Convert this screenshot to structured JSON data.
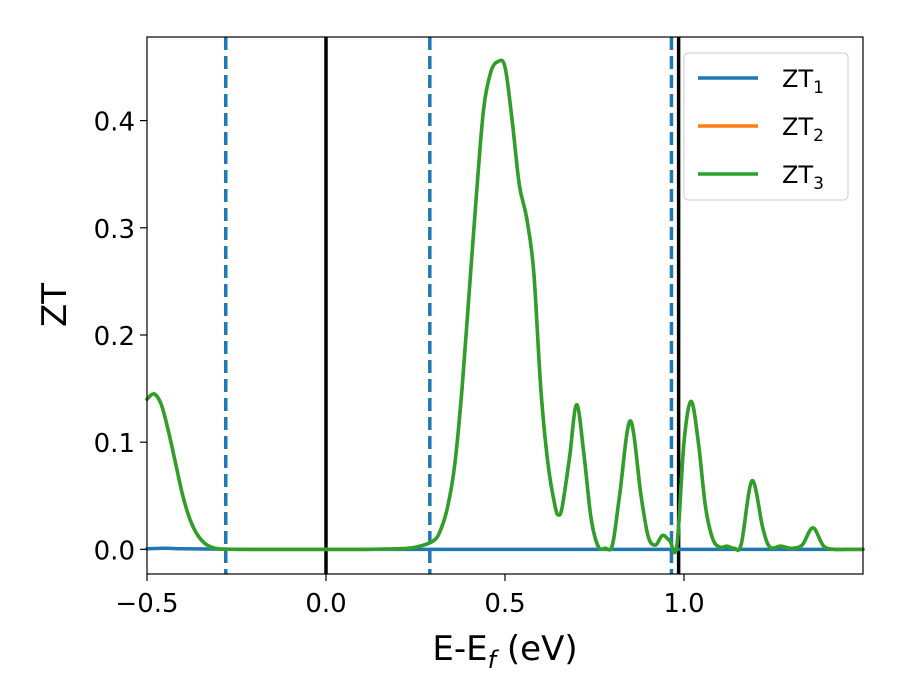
{
  "chart_data": {
    "type": "line",
    "title": "",
    "xlabel": {
      "main": "E-E",
      "sub": "f",
      "unit": " (eV)"
    },
    "ylabel": "ZT",
    "xlim": [
      -0.5,
      1.5
    ],
    "ylim": [
      -0.023,
      0.478
    ],
    "xticks": [
      {
        "value": -0.5,
        "label": "−0.5"
      },
      {
        "value": 0.0,
        "label": "0.0"
      },
      {
        "value": 0.5,
        "label": "0.5"
      },
      {
        "value": 1.0,
        "label": "1.0"
      }
    ],
    "yticks": [
      {
        "value": 0.0,
        "label": "0.0"
      },
      {
        "value": 0.1,
        "label": "0.1"
      },
      {
        "value": 0.2,
        "label": "0.2"
      },
      {
        "value": 0.3,
        "label": "0.3"
      },
      {
        "value": 0.4,
        "label": "0.4"
      }
    ],
    "grid": false,
    "legend_position": "top-right",
    "series": [
      {
        "name": "ZT",
        "sub": "1",
        "color": "#1f77b4",
        "x": [
          -0.5,
          -0.45,
          -0.4,
          -0.3,
          -0.2,
          -0.1,
          0.0,
          0.2,
          0.4,
          0.6,
          0.8,
          1.0,
          1.2,
          1.4,
          1.5
        ],
        "y": [
          0.0005,
          0.001,
          0.0005,
          0.0002,
          0.0,
          0.0,
          0.0,
          0.0,
          0.0,
          0.0,
          0.0,
          0.0,
          0.0,
          0.0,
          0.0
        ]
      },
      {
        "name": "ZT",
        "sub": "2",
        "color": "#ff7f0e",
        "x": [
          -0.5,
          -0.48,
          -0.46,
          -0.44,
          -0.42,
          -0.4,
          -0.38,
          -0.36,
          -0.34,
          -0.32,
          -0.3,
          -0.25,
          -0.2,
          -0.1,
          0.0,
          0.1,
          0.2,
          0.25,
          0.3,
          0.32,
          0.34,
          0.36,
          0.38,
          0.4,
          0.42,
          0.44,
          0.46,
          0.48,
          0.5,
          0.52,
          0.54,
          0.56,
          0.58,
          0.6,
          0.62,
          0.64,
          0.65,
          0.66,
          0.68,
          0.7,
          0.72,
          0.74,
          0.76,
          0.78,
          0.8,
          0.82,
          0.85,
          0.88,
          0.9,
          0.92,
          0.94,
          0.96,
          0.98,
          1.0,
          1.02,
          1.04,
          1.06,
          1.08,
          1.1,
          1.12,
          1.14,
          1.16,
          1.19,
          1.22,
          1.24,
          1.27,
          1.3,
          1.33,
          1.36,
          1.39,
          1.42,
          1.45,
          1.5
        ],
        "y": [
          0.14,
          0.145,
          0.135,
          0.11,
          0.08,
          0.05,
          0.028,
          0.014,
          0.006,
          0.002,
          0.0005,
          0.0,
          0.0,
          0.0,
          0.0,
          0.0,
          0.0005,
          0.002,
          0.008,
          0.018,
          0.04,
          0.08,
          0.15,
          0.24,
          0.33,
          0.41,
          0.445,
          0.455,
          0.45,
          0.4,
          0.34,
          0.31,
          0.26,
          0.15,
          0.08,
          0.04,
          0.032,
          0.04,
          0.085,
          0.135,
          0.09,
          0.03,
          0.003,
          0.001,
          0.004,
          0.05,
          0.12,
          0.05,
          0.012,
          0.004,
          0.013,
          0.008,
          0.003,
          0.1,
          0.138,
          0.1,
          0.04,
          0.01,
          0.002,
          0.003,
          0.001,
          0.005,
          0.064,
          0.02,
          0.002,
          0.003,
          0.001,
          0.004,
          0.02,
          0.003,
          0.0,
          0.0,
          0.0
        ]
      },
      {
        "name": "ZT",
        "sub": "3",
        "color": "#2ca02c",
        "x": [
          -0.5,
          -0.48,
          -0.46,
          -0.44,
          -0.42,
          -0.4,
          -0.38,
          -0.36,
          -0.34,
          -0.32,
          -0.3,
          -0.25,
          -0.2,
          -0.1,
          0.0,
          0.1,
          0.2,
          0.25,
          0.3,
          0.32,
          0.34,
          0.36,
          0.38,
          0.4,
          0.42,
          0.44,
          0.46,
          0.48,
          0.5,
          0.52,
          0.54,
          0.56,
          0.58,
          0.6,
          0.62,
          0.64,
          0.65,
          0.66,
          0.68,
          0.7,
          0.72,
          0.74,
          0.76,
          0.78,
          0.8,
          0.82,
          0.85,
          0.88,
          0.9,
          0.92,
          0.94,
          0.96,
          0.98,
          1.0,
          1.02,
          1.04,
          1.06,
          1.08,
          1.1,
          1.12,
          1.14,
          1.16,
          1.19,
          1.22,
          1.24,
          1.27,
          1.3,
          1.33,
          1.36,
          1.39,
          1.42,
          1.45,
          1.5
        ],
        "y": [
          0.14,
          0.145,
          0.135,
          0.11,
          0.08,
          0.05,
          0.028,
          0.014,
          0.006,
          0.002,
          0.0005,
          0.0,
          0.0,
          0.0,
          0.0,
          0.0,
          0.0005,
          0.002,
          0.008,
          0.018,
          0.04,
          0.08,
          0.15,
          0.24,
          0.33,
          0.41,
          0.445,
          0.455,
          0.45,
          0.4,
          0.34,
          0.31,
          0.26,
          0.15,
          0.08,
          0.04,
          0.032,
          0.04,
          0.085,
          0.135,
          0.09,
          0.03,
          0.003,
          0.001,
          0.004,
          0.05,
          0.12,
          0.05,
          0.012,
          0.004,
          0.013,
          0.008,
          0.003,
          0.1,
          0.138,
          0.1,
          0.04,
          0.01,
          0.002,
          0.003,
          0.001,
          0.005,
          0.064,
          0.02,
          0.002,
          0.003,
          0.001,
          0.004,
          0.02,
          0.003,
          0.0,
          0.0,
          0.0
        ]
      }
    ],
    "vlines": [
      {
        "x": -0.28,
        "style": "dashed",
        "color": "#1f77b4"
      },
      {
        "x": 0.29,
        "style": "dashed",
        "color": "#1f77b4"
      },
      {
        "x": 0.965,
        "style": "dashed",
        "color": "#1f77b4"
      },
      {
        "x": 0.0,
        "style": "solid",
        "color": "#000000"
      },
      {
        "x": 0.985,
        "style": "solid",
        "color": "#000000"
      }
    ]
  }
}
